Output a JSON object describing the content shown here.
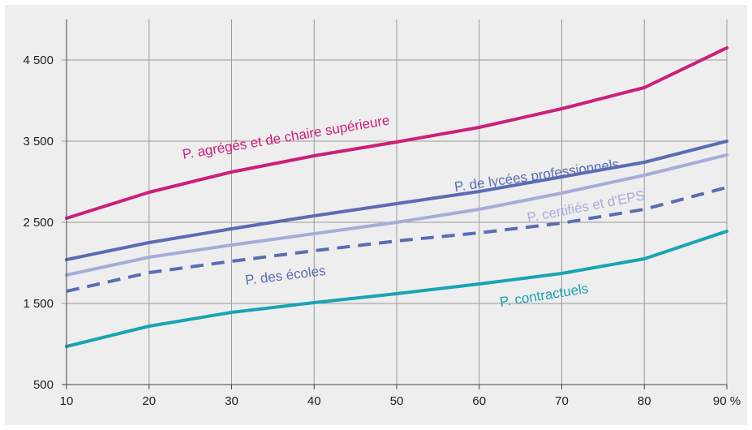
{
  "chart_data": {
    "type": "line",
    "title": "",
    "xlabel": "",
    "ylabel": "",
    "x": [
      10,
      20,
      30,
      40,
      50,
      60,
      70,
      80,
      90
    ],
    "x_tick_labels": [
      "10",
      "20",
      "30",
      "40",
      "50",
      "60",
      "70",
      "80",
      "90 %"
    ],
    "xlim": [
      10,
      90
    ],
    "ylim": [
      500,
      5000
    ],
    "y_ticks": [
      500,
      1500,
      2500,
      3500,
      4500
    ],
    "y_tick_labels": [
      "500",
      "1 500",
      "2 500",
      "3 500",
      "4 500"
    ],
    "grid": true,
    "series": [
      {
        "name": "P. agrégés et de chaire supérieure",
        "color": "#cc1f7a",
        "dashed": false,
        "values": [
          2550,
          2870,
          3120,
          3320,
          3490,
          3670,
          3900,
          4160,
          4650
        ]
      },
      {
        "name": "P. de lycées professionnels",
        "color": "#5b6cb5",
        "dashed": false,
        "values": [
          2040,
          2250,
          2420,
          2580,
          2730,
          2880,
          3060,
          3240,
          3500
        ]
      },
      {
        "name": "P. certifiés et d'EPS",
        "color": "#a8acd8",
        "dashed": false,
        "values": [
          1850,
          2070,
          2220,
          2360,
          2500,
          2660,
          2860,
          3080,
          3330
        ]
      },
      {
        "name": "P. des écoles",
        "color": "#5b6cb5",
        "dashed": true,
        "values": [
          1650,
          1880,
          2020,
          2150,
          2270,
          2370,
          2490,
          2660,
          2930
        ]
      },
      {
        "name": "P. contractuels",
        "color": "#1aa3b4",
        "dashed": false,
        "values": [
          970,
          1220,
          1390,
          1510,
          1620,
          1740,
          1870,
          2050,
          2390
        ]
      }
    ]
  }
}
